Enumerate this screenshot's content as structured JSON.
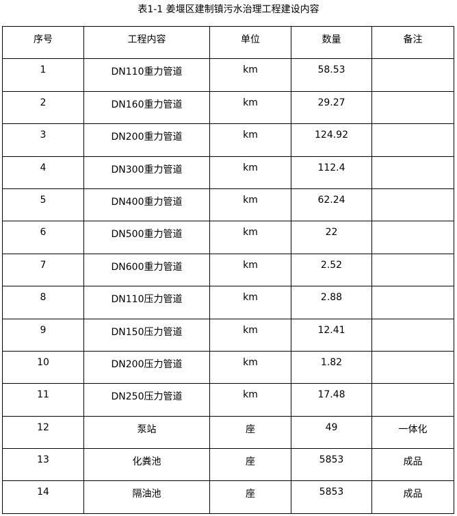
{
  "title": "表1-1 姜堰区建制镇污水治理工程建设内容",
  "table": {
    "headers": [
      "序号",
      "工程内容",
      "单位",
      "数量",
      "备注"
    ],
    "rows": [
      [
        "1",
        "DN110重力管道",
        "km",
        "58.53",
        ""
      ],
      [
        "2",
        "DN160重力管道",
        "km",
        "29.27",
        ""
      ],
      [
        "3",
        "DN200重力管道",
        "km",
        "124.92",
        ""
      ],
      [
        "4",
        "DN300重力管道",
        "km",
        "112.4",
        ""
      ],
      [
        "5",
        "DN400重力管道",
        "km",
        "62.24",
        ""
      ],
      [
        "6",
        "DN500重力管道",
        "km",
        "22",
        ""
      ],
      [
        "7",
        "DN600重力管道",
        "km",
        "2.52",
        ""
      ],
      [
        "8",
        "DN110压力管道",
        "km",
        "2.88",
        ""
      ],
      [
        "9",
        "DN150压力管道",
        "km",
        "12.41",
        ""
      ],
      [
        "10",
        "DN200压力管道",
        "km",
        "1.82",
        ""
      ],
      [
        "11",
        "DN250压力管道",
        "km",
        "17.48",
        ""
      ],
      [
        "12",
        "泵站",
        "座",
        "49",
        "一体化"
      ],
      [
        "13",
        "化粪池",
        "座",
        "5853",
        "成品"
      ],
      [
        "14",
        "隔油池",
        "座",
        "5853",
        "成品"
      ]
    ]
  }
}
